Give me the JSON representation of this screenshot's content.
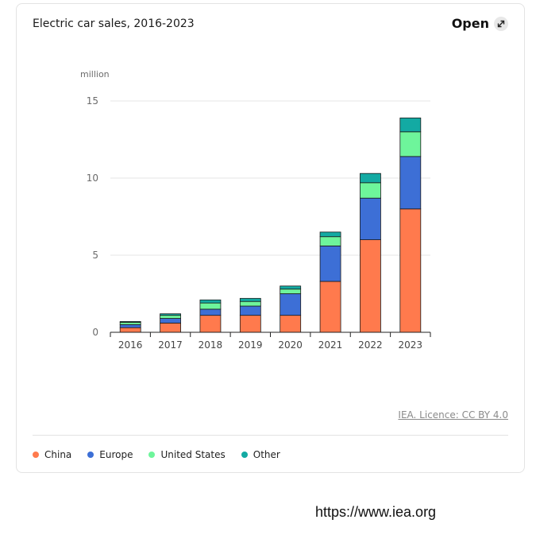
{
  "header": {
    "title": "Electric car sales, 2016-2023",
    "open_label": "Open"
  },
  "footer": {
    "licence": "IEA. Licence: CC BY 4.0",
    "source_url": "https://www.iea.org"
  },
  "colors": {
    "China": "#ff7a4d",
    "Europe": "#3d6fd6",
    "United States": "#6ef59b",
    "Other": "#13aaa3"
  },
  "chart_data": {
    "type": "bar",
    "stacked": true,
    "title": "Electric car sales, 2016-2023",
    "ylabel": "million",
    "xlabel": "",
    "ylim": [
      0,
      15
    ],
    "yticks": [
      0,
      5,
      10,
      15
    ],
    "grid": true,
    "legend_position": "bottom-left",
    "categories": [
      "2016",
      "2017",
      "2018",
      "2019",
      "2020",
      "2021",
      "2022",
      "2023"
    ],
    "series": [
      {
        "name": "China",
        "values": [
          0.3,
          0.6,
          1.1,
          1.1,
          1.1,
          3.3,
          6.0,
          8.0
        ]
      },
      {
        "name": "Europe",
        "values": [
          0.2,
          0.3,
          0.4,
          0.6,
          1.4,
          2.3,
          2.7,
          3.4
        ]
      },
      {
        "name": "United States",
        "values": [
          0.15,
          0.2,
          0.4,
          0.3,
          0.3,
          0.6,
          1.0,
          1.6
        ]
      },
      {
        "name": "Other",
        "values": [
          0.05,
          0.1,
          0.2,
          0.2,
          0.2,
          0.3,
          0.6,
          0.9
        ]
      }
    ]
  }
}
